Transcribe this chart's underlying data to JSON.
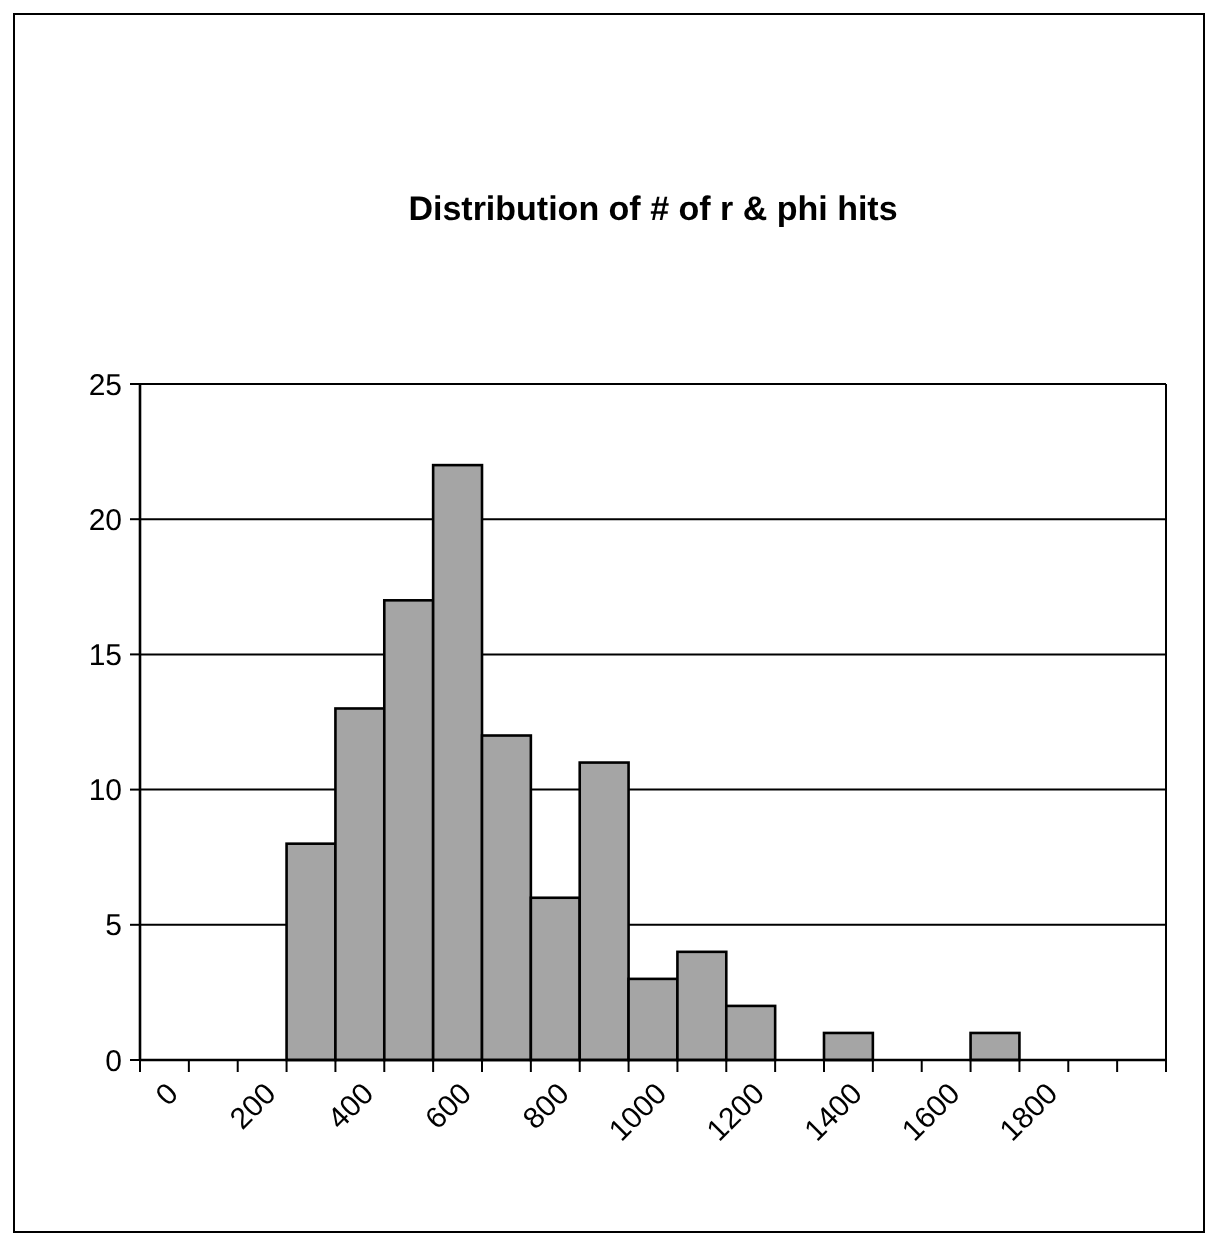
{
  "chart_data": {
    "type": "bar",
    "title": "Distribution of # of r & phi hits",
    "categories": [
      "0",
      null,
      "200",
      null,
      "400",
      null,
      "600",
      null,
      "800",
      null,
      "1000",
      null,
      "1200",
      null,
      "1400",
      null,
      "1600",
      null,
      "1800",
      null,
      null
    ],
    "values": [
      0,
      0,
      0,
      8,
      13,
      17,
      22,
      12,
      6,
      11,
      3,
      4,
      2,
      0,
      1,
      0,
      0,
      1,
      0,
      0,
      0
    ],
    "color": "#a5a5a5",
    "ylim": [
      0,
      25
    ],
    "yticks": [
      0,
      5,
      10,
      15,
      20,
      25
    ],
    "grid": "y"
  }
}
